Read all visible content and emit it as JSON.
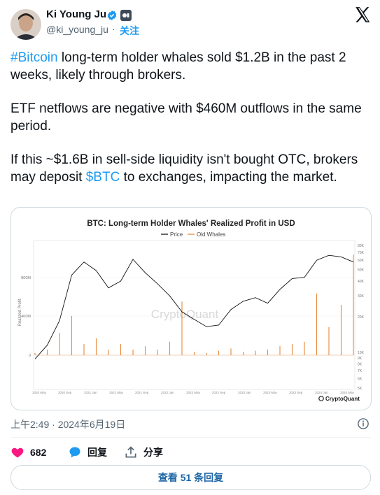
{
  "author": {
    "name": "Ki Young Ju",
    "handle": "@ki_young_ju",
    "separator": "·",
    "follow_label": "关注"
  },
  "tweet": {
    "hashtag_bitcoin": "#Bitcoin",
    "p1_rest": " long-term holder whales sold $1.2B in the past 2 weeks, likely through brokers.",
    "p2": "ETF netflows are negative with $460M outflows in the same period.",
    "p3_a": "If this ~$1.6B in sell-side liquidity isn't bought OTC, brokers may deposit ",
    "cashtag_btc": "$BTC",
    "p3_b": " to exchanges, impacting the market."
  },
  "chart_data": {
    "type": "line",
    "title": "BTC: Long-term Holder Whales' Realized Profit in USD",
    "legend": [
      "Price",
      "Old Whales"
    ],
    "ylabel": "Realized Profit",
    "watermark": "CryptoQuant",
    "brand": "CryptoQuant",
    "left_ticks": [
      "800M",
      "400M",
      "0"
    ],
    "right_ticks": [
      "80K",
      "70K",
      "60K",
      "50K",
      "40K",
      "30K",
      "20K",
      "10K",
      "9K",
      "8K",
      "7K",
      "6K",
      "5K"
    ],
    "x_ticks": [
      "2020 May",
      "2020 Sep",
      "2021 Jan",
      "2021 May",
      "2021 Sep",
      "2022 Jan",
      "2022 May",
      "2022 Sep",
      "2023 Jan",
      "2023 May",
      "2023 Sep",
      "2024 Jan",
      "2024 May"
    ],
    "series": [
      {
        "name": "Price",
        "color": "#111111",
        "values": [
          8.8,
          11.5,
          18.5,
          45,
          58,
          49,
          35,
          40,
          61,
          47,
          38,
          30,
          22,
          19,
          16.5,
          17,
          23,
          27,
          29,
          26,
          34,
          42,
          43,
          60,
          66,
          64,
          58
        ]
      },
      {
        "name": "Old Whales",
        "color": "#e8893a",
        "values": [
          0.02,
          0.05,
          0.2,
          0.35,
          0.1,
          0.15,
          0.05,
          0.1,
          0.05,
          0.08,
          0.05,
          0.12,
          0.48,
          0.03,
          0.02,
          0.04,
          0.06,
          0.03,
          0.04,
          0.05,
          0.08,
          0.1,
          0.12,
          0.55,
          0.25,
          0.45,
          0.9
        ]
      }
    ]
  },
  "footer": {
    "timestamp": "上午2:49 · 2024年6月19日",
    "likes_count": "682",
    "reply_label": "回复",
    "share_label": "分享",
    "view_replies_label": "查看 51 条回复"
  },
  "colors": {
    "accent": "#1d9bf0",
    "heart": "#f91880",
    "whales": "#e8893a"
  }
}
